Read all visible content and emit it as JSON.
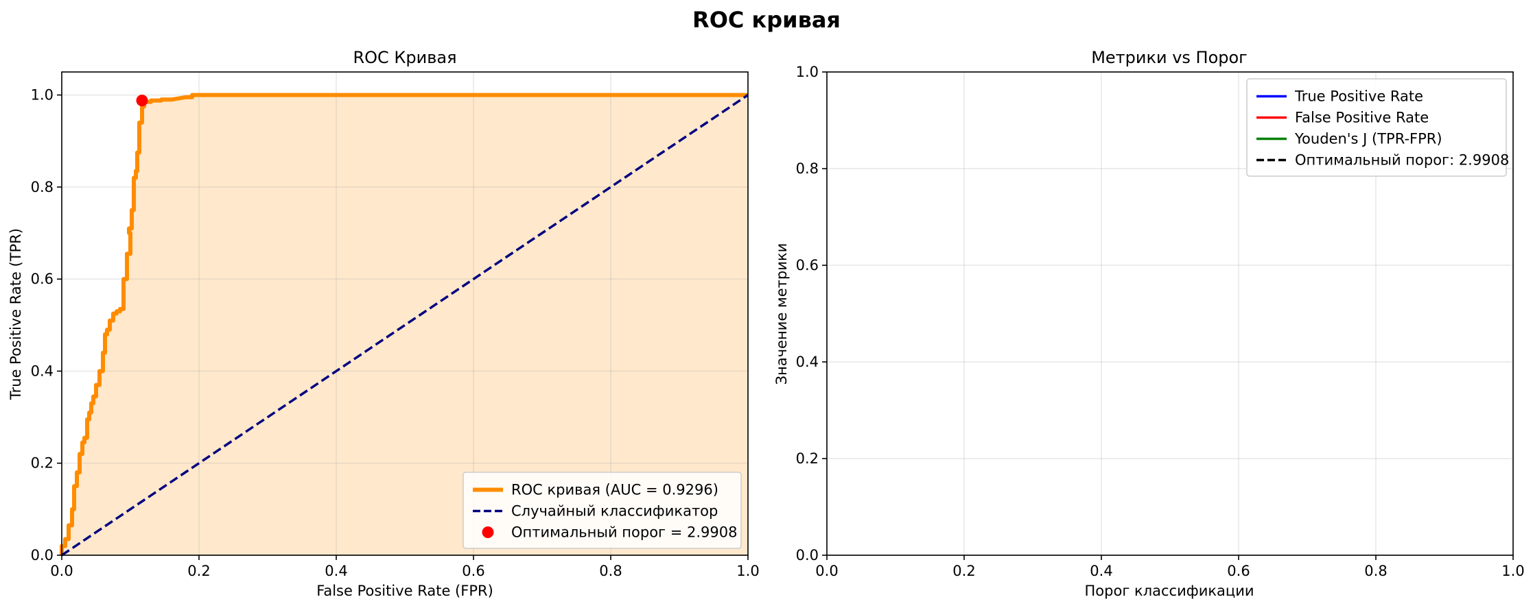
{
  "figure": {
    "suptitle": "ROC кривая"
  },
  "chart_data": [
    {
      "type": "line",
      "title": "ROC Кривая",
      "xlabel": "False Positive Rate (FPR)",
      "ylabel": "True Positive Rate (TPR)",
      "xlim": [
        0,
        1
      ],
      "ylim": [
        0,
        1.05
      ],
      "xticks": [
        "0.0",
        "0.2",
        "0.4",
        "0.6",
        "0.8",
        "1.0"
      ],
      "yticks": [
        "0.0",
        "0.2",
        "0.4",
        "0.6",
        "0.8",
        "1.0"
      ],
      "grid": true,
      "legend_position": "lower-right",
      "series": [
        {
          "name": "ROC кривая (AUC = 0.9296)",
          "color": "#ff8c00",
          "style": "solid",
          "fill": "#ffe8cc",
          "x": [
            0.0,
            0.0,
            0.005,
            0.005,
            0.01,
            0.01,
            0.015,
            0.015,
            0.018,
            0.018,
            0.022,
            0.022,
            0.026,
            0.026,
            0.03,
            0.03,
            0.033,
            0.033,
            0.037,
            0.037,
            0.04,
            0.04,
            0.043,
            0.043,
            0.046,
            0.046,
            0.05,
            0.05,
            0.055,
            0.055,
            0.06,
            0.06,
            0.063,
            0.063,
            0.066,
            0.066,
            0.07,
            0.07,
            0.075,
            0.075,
            0.08,
            0.08,
            0.085,
            0.085,
            0.09,
            0.09,
            0.095,
            0.095,
            0.1,
            0.1,
            0.098,
            0.098,
            0.102,
            0.102,
            0.105,
            0.105,
            0.108,
            0.108,
            0.11,
            0.11,
            0.113,
            0.113,
            0.117,
            0.117,
            0.12,
            0.12,
            0.13,
            0.13,
            0.145,
            0.145,
            0.16,
            0.18,
            0.19,
            0.19,
            0.2,
            0.2,
            0.3,
            0.5,
            0.7,
            0.9,
            1.0
          ],
          "y": [
            0.0,
            0.02,
            0.02,
            0.035,
            0.035,
            0.065,
            0.065,
            0.1,
            0.1,
            0.15,
            0.15,
            0.18,
            0.18,
            0.22,
            0.22,
            0.245,
            0.245,
            0.255,
            0.255,
            0.295,
            0.295,
            0.31,
            0.31,
            0.33,
            0.33,
            0.345,
            0.345,
            0.37,
            0.37,
            0.4,
            0.4,
            0.44,
            0.44,
            0.48,
            0.48,
            0.49,
            0.49,
            0.51,
            0.51,
            0.525,
            0.525,
            0.53,
            0.53,
            0.535,
            0.535,
            0.6,
            0.6,
            0.655,
            0.655,
            0.7,
            0.7,
            0.71,
            0.71,
            0.75,
            0.75,
            0.82,
            0.82,
            0.835,
            0.835,
            0.875,
            0.875,
            0.94,
            0.94,
            0.975,
            0.975,
            0.985,
            0.985,
            0.988,
            0.988,
            0.99,
            0.99,
            0.995,
            0.995,
            1.0,
            1.0,
            1.0,
            1.0,
            1.0,
            1.0,
            1.0,
            1.0
          ]
        },
        {
          "name": "Случайный классификатор",
          "color": "#000080",
          "style": "dashed",
          "x": [
            0,
            1
          ],
          "y": [
            0,
            1
          ]
        },
        {
          "name": "Оптимальный порог = 2.9908",
          "color": "#ff0000",
          "style": "marker",
          "x": [
            0.117
          ],
          "y": [
            0.988
          ]
        }
      ]
    },
    {
      "type": "line",
      "title": "Метрики vs Порог",
      "xlabel": "Порог классификации",
      "ylabel": "Значение метрики",
      "xlim": [
        0,
        1
      ],
      "ylim": [
        0,
        1
      ],
      "xticks": [
        "0.0",
        "0.2",
        "0.4",
        "0.6",
        "0.8",
        "1.0"
      ],
      "yticks": [
        "0.0",
        "0.2",
        "0.4",
        "0.6",
        "0.8",
        "1.0"
      ],
      "grid": true,
      "legend_position": "upper-right",
      "series": [
        {
          "name": "True Positive Rate",
          "color": "#0000ff",
          "style": "solid",
          "x": [],
          "y": []
        },
        {
          "name": "False Positive Rate",
          "color": "#ff0000",
          "style": "solid",
          "x": [],
          "y": []
        },
        {
          "name": "Youden's J (TPR-FPR)",
          "color": "#008000",
          "style": "solid",
          "x": [],
          "y": []
        },
        {
          "name": "Оптимальный порог: 2.9908",
          "color": "#000000",
          "style": "dashed",
          "x": [],
          "y": []
        }
      ]
    }
  ]
}
